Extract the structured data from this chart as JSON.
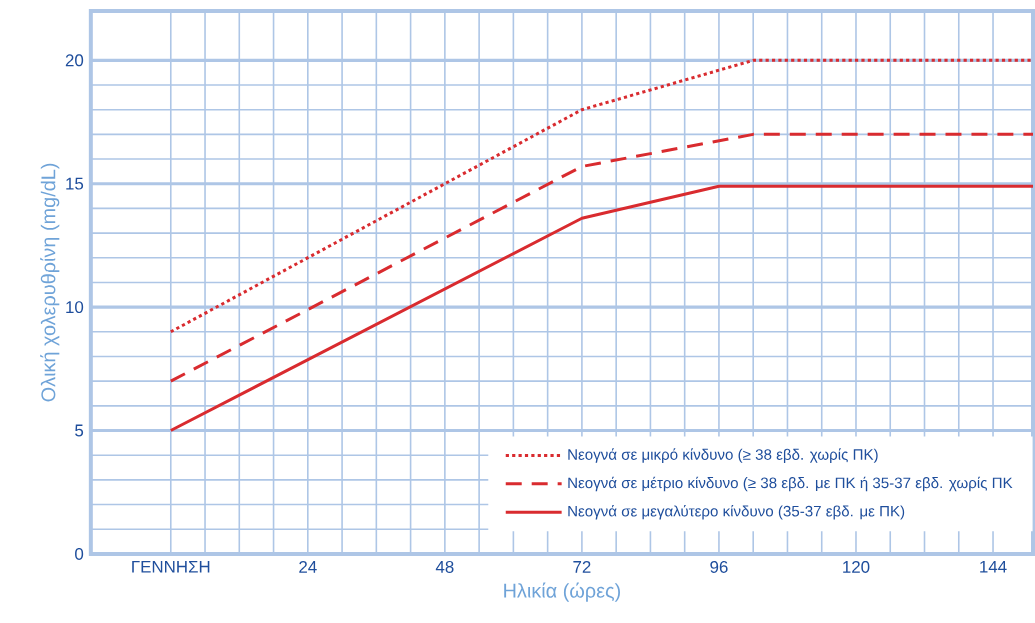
{
  "chart_data": {
    "type": "line",
    "xlabel": "Ηλικία (ώρες)",
    "ylabel": "Ολική χολερυθρίνη (mg/dL)",
    "xlim": [
      -14,
      151
    ],
    "ylim": [
      0,
      22
    ],
    "xticks": [
      {
        "value": 0,
        "label": "ΓΕΝΝΗΣΗ"
      },
      24,
      48,
      72,
      96,
      120,
      144
    ],
    "yticks": [
      0,
      5,
      10,
      15,
      20
    ],
    "grid": true,
    "legend": "bottom right",
    "marker": "none",
    "series": [
      {
        "name": "Νεογνά σε μικρό κίνδυνο (≥ 38 εβδ. χωρίς ΠΚ)",
        "color": "#d92b2f",
        "line_style": "dotted",
        "x": [
          0,
          72,
          102,
          151
        ],
        "values": [
          9,
          18,
          20,
          20
        ]
      },
      {
        "name": "Νεογνά σε μέτριο κίνδυνο (≥ 38 εβδ. με ΠΚ ή 35-37 εβδ. χωρίς ΠΚ",
        "color": "#d92b2f",
        "line_style": "dashed",
        "x": [
          0,
          72,
          102,
          151
        ],
        "values": [
          7,
          15.7,
          17,
          17
        ]
      },
      {
        "name": "Νεογνά σε μεγαλύτερο κίνδυνο (35-37 εβδ. με ΠΚ)",
        "color": "#d92b2f",
        "line_style": "solid",
        "x": [
          0,
          72,
          96,
          151
        ],
        "values": [
          5,
          13.6,
          14.9,
          14.9
        ]
      }
    ]
  }
}
